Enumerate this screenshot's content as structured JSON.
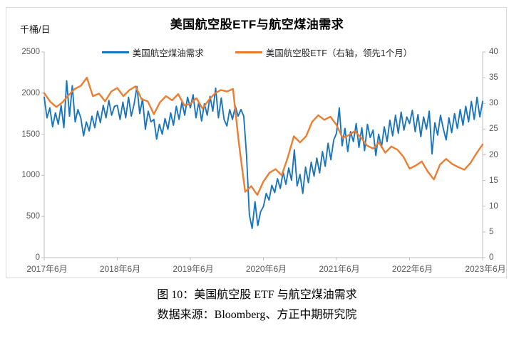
{
  "header": {
    "title": "美国航空股ETF与航空煤油需求",
    "unit_label": "千桶/日"
  },
  "legend": [
    {
      "label": "美国航空煤油需求",
      "color": "#1B75BB"
    },
    {
      "label": "美国航空股ETF（右轴，领先1个月）",
      "color": "#ED7D31"
    }
  ],
  "caption": {
    "figure": "图 10：美国航空股 ETF 与航空煤油需求",
    "source": "数据来源：Bloomberg、方正中期研究院"
  },
  "chart_data": {
    "type": "line",
    "title": "美国航空股ETF与航空煤油需求",
    "grid": false,
    "legend_position": "top",
    "x_categories": [
      "2017年6月",
      "2018年6月",
      "2019年6月",
      "2020年6月",
      "2021年6月",
      "2022年6月",
      "2023年6月"
    ],
    "left_axis": {
      "label": "千桶/日",
      "min": 0,
      "max": 2500,
      "ticks": [
        2500,
        2000,
        1500,
        1000,
        500,
        0
      ]
    },
    "right_axis": {
      "min": 0,
      "max": 40,
      "ticks": [
        40,
        35,
        30,
        25,
        20,
        15,
        10,
        5,
        0
      ]
    },
    "series": [
      {
        "id": "jet-fuel-demand",
        "name": "美国航空煤油需求",
        "axis": "left",
        "color": "#1B75BB",
        "cadence": "biweekly 2017-06 to 2023-06",
        "values": [
          1950,
          1700,
          1820,
          1590,
          1760,
          1620,
          1850,
          1580,
          2150,
          1720,
          2090,
          1650,
          1800,
          1700,
          1480,
          1650,
          1540,
          1720,
          1580,
          1780,
          1640,
          1850,
          1700,
          1910,
          1730,
          1840,
          1850,
          1680,
          1890,
          1700,
          1950,
          1720,
          1870,
          2080,
          1750,
          1930,
          1560,
          1780,
          1650,
          1680,
          1440,
          1620,
          1500,
          1690,
          1560,
          1760,
          1610,
          1840,
          1680,
          1890,
          1730,
          1950,
          1820,
          1980,
          1700,
          1890,
          1660,
          1870,
          1730,
          1960,
          1780,
          2060,
          1700,
          1940,
          1680,
          1600,
          1800,
          1680,
          1840,
          1720,
          1800,
          1720,
          1250,
          520,
          355,
          680,
          390,
          560,
          620,
          780,
          700,
          880,
          790,
          960,
          840,
          1040,
          890,
          1090,
          940,
          1310,
          870,
          1010,
          780,
          1100,
          910,
          1160,
          990,
          1210,
          1030,
          1290,
          1110,
          1390,
          1190,
          1430,
          1510,
          1820,
          1360,
          1570,
          1290,
          1530,
          1410,
          1630,
          1340,
          1580,
          1300,
          1620,
          1460,
          1550,
          1240,
          1500,
          1340,
          1590,
          1410,
          1670,
          1480,
          1730,
          1510,
          1770,
          1550,
          1710,
          1630,
          1790,
          1530,
          1740,
          1470,
          1710,
          1560,
          1780,
          1260,
          1640,
          1490,
          1730,
          1570,
          1430,
          1700,
          1520,
          1750,
          1570,
          1800,
          1610,
          1840,
          1650,
          1900,
          1680,
          1950,
          1710,
          1900
        ]
      },
      {
        "id": "airline-etf",
        "name": "美国航空股ETF（右轴，领先1个月）",
        "axis": "right",
        "color": "#ED7D31",
        "cadence": "monthly 2017-06 to 2023-06",
        "values": [
          32.0,
          30.3,
          29.3,
          30.2,
          31.6,
          32.8,
          33.4,
          35.0,
          31.4,
          31.9,
          30.4,
          32.3,
          33.0,
          31.4,
          32.6,
          33.3,
          30.8,
          30.4,
          27.9,
          30.2,
          31.4,
          30.6,
          31.8,
          29.6,
          29.9,
          31.0,
          29.0,
          30.6,
          31.9,
          32.6,
          32.3,
          32.8,
          22.0,
          12.8,
          13.9,
          12.2,
          14.8,
          16.5,
          17.2,
          16.0,
          19.5,
          23.6,
          22.4,
          23.6,
          26.4,
          27.7,
          26.8,
          27.4,
          25.8,
          23.3,
          23.8,
          24.6,
          23.4,
          21.8,
          21.2,
          22.4,
          20.4,
          21.6,
          21.0,
          19.6,
          17.3,
          17.9,
          18.7,
          16.7,
          15.2,
          18.1,
          19.2,
          18.2,
          17.6,
          17.1,
          18.4,
          20.3,
          22.0
        ]
      }
    ]
  }
}
